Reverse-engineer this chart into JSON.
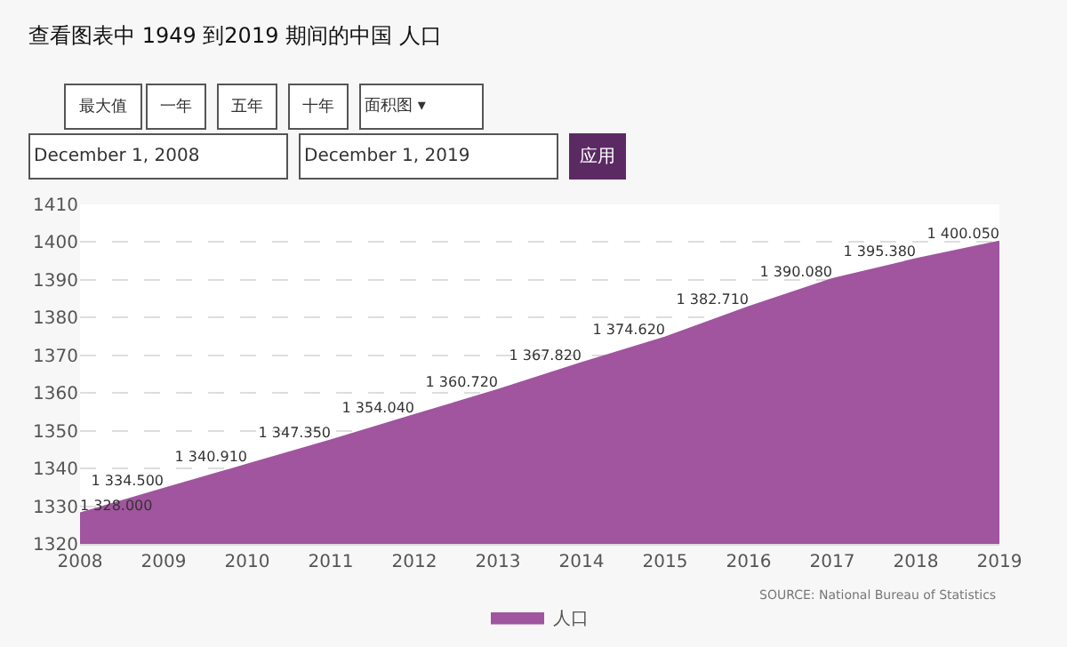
{
  "chart_data": {
    "type": "area",
    "title": "查看图表中 1949 到2019 期间的中国 人口",
    "x": [
      2008,
      2009,
      2010,
      2011,
      2012,
      2013,
      2014,
      2015,
      2016,
      2017,
      2018,
      2019
    ],
    "series": [
      {
        "name": "人口",
        "color": "#a0559e",
        "values": [
          1328.0,
          1334.5,
          1340.91,
          1347.35,
          1354.04,
          1360.72,
          1367.82,
          1374.62,
          1382.71,
          1390.08,
          1395.38,
          1400.05
        ],
        "value_labels": [
          "1 328.000",
          "1 334.500",
          "1 340.910",
          "1 347.350",
          "1 354.040",
          "1 360.720",
          "1 367.820",
          "1 374.620",
          "1 382.710",
          "1 390.080",
          "1 395.380",
          "1 400.050"
        ]
      }
    ],
    "xlim": [
      2008,
      2019
    ],
    "xticks": [
      2008,
      2009,
      2010,
      2011,
      2012,
      2013,
      2014,
      2015,
      2016,
      2017,
      2018,
      2019
    ],
    "ylim": [
      1320,
      1410
    ],
    "yticks": [
      1320,
      1330,
      1340,
      1350,
      1360,
      1370,
      1380,
      1390,
      1400,
      1410
    ],
    "grid": "y",
    "legend": "bottom",
    "marker": "none",
    "line_style": "solid",
    "annotations": [
      "最大值",
      "一年",
      "五年",
      "十年",
      "面积图 ▾",
      "December 1, 2008",
      "December 1, 2019",
      "应用",
      "SOURCE: National Bureau of Statistics"
    ]
  }
}
